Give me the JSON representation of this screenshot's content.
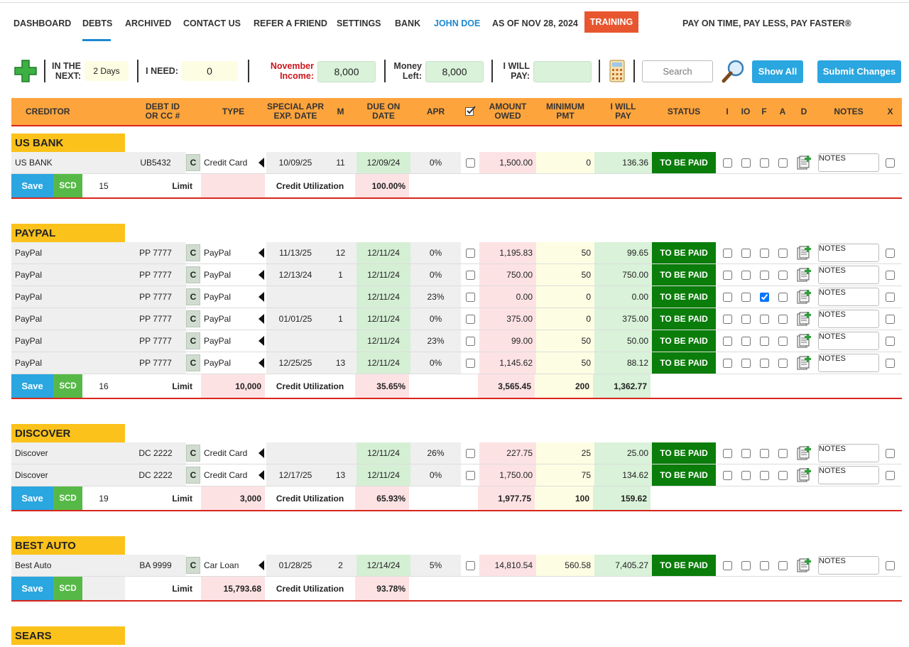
{
  "nav": {
    "items": [
      "DASHBOARD",
      "DEBTS",
      "ARCHIVED",
      "CONTACT US",
      "REFER A FRIEND",
      "SETTINGS",
      "BANK",
      "JOHN DOE",
      "AS OF NOV 28, 2024"
    ],
    "training": "TRAINING",
    "tagline": "PAY ON TIME, PAY LESS, PAY FASTER®"
  },
  "toolbar": {
    "in_the_next_label": "IN THE\nNEXT:",
    "in_the_next_value": "2 Days",
    "i_need_label": "I NEED:",
    "i_need_value": "0",
    "income_label": "November\nIncome:",
    "income_value": "8,000",
    "money_left_label": "Money\nLeft:",
    "money_left_value": "8,000",
    "i_will_pay_label": "I WILL\nPAY:",
    "search_placeholder": "Search",
    "show_all": "Show All",
    "submit": "Submit Changes"
  },
  "headers": [
    "CREDITOR",
    "DEBT ID\nOR CC #",
    "TYPE",
    "SPECIAL APR\nEXP. DATE",
    "M",
    "DUE ON\nDATE",
    "APR",
    "AMOUNT\nOWED",
    "MINIMUM\nPMT",
    "I WILL\nPAY",
    "STATUS",
    "I",
    "IO",
    "F",
    "A",
    "D",
    "NOTES",
    "X"
  ],
  "labels": {
    "c": "C",
    "notes": "NOTES",
    "save": "Save",
    "scd": "SCD",
    "limit": "Limit",
    "util": "Credit Utilization"
  },
  "groups": [
    {
      "name": "US BANK",
      "rows": [
        {
          "creditor": "US BANK",
          "id": "UB5432",
          "type": "Credit Card",
          "special_apr": "10/09/25",
          "m": "11",
          "due": "12/09/24",
          "apr": "0%",
          "amount": "1,500.00",
          "min": "0",
          "pay": "136.36",
          "status": "TO BE PAID",
          "checks": [
            false,
            false,
            false,
            false
          ]
        }
      ],
      "footer": {
        "count": "15",
        "limit": null,
        "util": "100.00%",
        "total_amount": null,
        "total_min": null,
        "total_pay": null
      }
    },
    {
      "name": "PAYPAL",
      "rows": [
        {
          "creditor": "PayPal",
          "id": "PP 7777",
          "type": "PayPal",
          "special_apr": "11/13/25",
          "m": "12",
          "due": "12/11/24",
          "apr": "0%",
          "amount": "1,195.83",
          "min": "50",
          "pay": "99.65",
          "status": "TO BE PAID",
          "checks": [
            false,
            false,
            false,
            false
          ]
        },
        {
          "creditor": "PayPal",
          "id": "PP 7777",
          "type": "PayPal",
          "special_apr": "12/13/24",
          "m": "1",
          "due": "12/11/24",
          "apr": "0%",
          "amount": "750.00",
          "min": "50",
          "pay": "750.00",
          "status": "TO BE PAID",
          "checks": [
            false,
            false,
            false,
            false
          ]
        },
        {
          "creditor": "PayPal",
          "id": "PP 7777",
          "type": "PayPal",
          "special_apr": null,
          "m": null,
          "due": "12/11/24",
          "apr": "23%",
          "amount": "0.00",
          "min": "0",
          "pay": "0.00",
          "status": "TO BE PAID",
          "checks": [
            false,
            false,
            true,
            false
          ]
        },
        {
          "creditor": "PayPal",
          "id": "PP 7777",
          "type": "PayPal",
          "special_apr": "01/01/25",
          "m": "1",
          "due": "12/11/24",
          "apr": "0%",
          "amount": "375.00",
          "min": "0",
          "pay": "375.00",
          "status": "TO BE PAID",
          "checks": [
            false,
            false,
            false,
            false
          ]
        },
        {
          "creditor": "PayPal",
          "id": "PP 7777",
          "type": "PayPal",
          "special_apr": null,
          "m": null,
          "due": "12/11/24",
          "apr": "23%",
          "amount": "99.00",
          "min": "50",
          "pay": "50.00",
          "status": "TO BE PAID",
          "checks": [
            false,
            false,
            false,
            false
          ]
        },
        {
          "creditor": "PayPal",
          "id": "PP 7777",
          "type": "PayPal",
          "special_apr": "12/25/25",
          "m": "13",
          "due": "12/11/24",
          "apr": "0%",
          "amount": "1,145.62",
          "min": "50",
          "pay": "88.12",
          "status": "TO BE PAID",
          "checks": [
            false,
            false,
            false,
            false
          ]
        }
      ],
      "footer": {
        "count": "16",
        "limit": "10,000",
        "util": "35.65%",
        "total_amount": "3,565.45",
        "total_min": "200",
        "total_pay": "1,362.77"
      }
    },
    {
      "name": "DISCOVER",
      "rows": [
        {
          "creditor": "Discover",
          "id": "DC 2222",
          "type": "Credit Card",
          "special_apr": null,
          "m": null,
          "due": "12/11/24",
          "apr": "26%",
          "amount": "227.75",
          "min": "25",
          "pay": "25.00",
          "status": "TO BE PAID",
          "checks": [
            false,
            false,
            false,
            false
          ]
        },
        {
          "creditor": "Discover",
          "id": "DC 2222",
          "type": "Credit Card",
          "special_apr": "12/17/25",
          "m": "13",
          "due": "12/11/24",
          "apr": "0%",
          "amount": "1,750.00",
          "min": "75",
          "pay": "134.62",
          "status": "TO BE PAID",
          "checks": [
            false,
            false,
            false,
            false
          ]
        }
      ],
      "footer": {
        "count": "19",
        "limit": "3,000",
        "util": "65.93%",
        "total_amount": "1,977.75",
        "total_min": "100",
        "total_pay": "159.62"
      }
    },
    {
      "name": "BEST AUTO",
      "rows": [
        {
          "creditor": "Best Auto",
          "id": "BA 9999",
          "type": "Car Loan",
          "special_apr": "01/28/25",
          "m": "2",
          "due": "12/14/24",
          "apr": "5%",
          "amount": "14,810.54",
          "min": "560.58",
          "pay": "7,405.27",
          "status": "TO BE PAID",
          "checks": [
            false,
            false,
            false,
            false
          ]
        }
      ],
      "footer": {
        "count": null,
        "limit": "15,793.68",
        "util": "93.78%",
        "total_amount": null,
        "total_min": null,
        "total_pay": null
      }
    },
    {
      "name": "SEARS",
      "rows": [],
      "footer": null
    }
  ]
}
